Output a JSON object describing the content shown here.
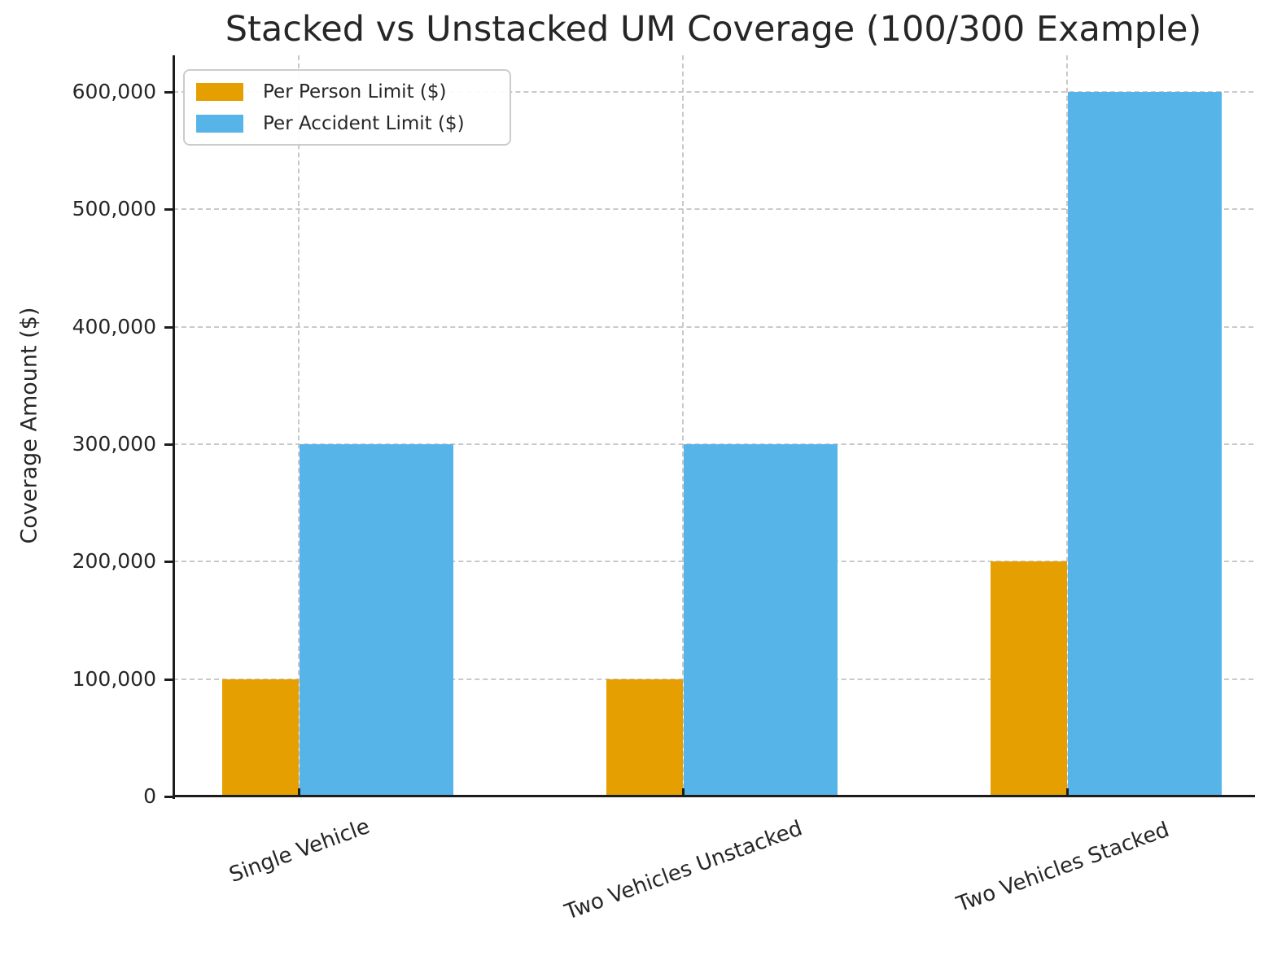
{
  "chart_data": {
    "type": "bar",
    "title": "Stacked vs Unstacked UM Coverage (100/300 Example)",
    "xlabel": "",
    "ylabel": "Coverage Amount ($)",
    "categories": [
      "Single Vehicle",
      "Two Vehicles Unstacked",
      "Two Vehicles Stacked"
    ],
    "series": [
      {
        "name": "Per Person Limit ($)",
        "color": "#E69F00",
        "values": [
          100000,
          100000,
          200000
        ]
      },
      {
        "name": "Per Accident Limit ($)",
        "color": "#56B4E9",
        "values": [
          300000,
          300000,
          600000
        ]
      }
    ],
    "ylim": [
      0,
      631000
    ],
    "yticks": [
      {
        "value": 0,
        "label": "0"
      },
      {
        "value": 100000,
        "label": "100,000"
      },
      {
        "value": 200000,
        "label": "200,000"
      },
      {
        "value": 300000,
        "label": "300,000"
      },
      {
        "value": 400000,
        "label": "400,000"
      },
      {
        "value": 500000,
        "label": "500,000"
      },
      {
        "value": 600000,
        "label": "600,000"
      }
    ],
    "grid": "dashed, both axes",
    "legend_position": "upper left",
    "colors": {
      "per_person": "#E69F00",
      "per_accident": "#56B4E9",
      "grid": "#c9c9c9",
      "text": "#262626",
      "spine": "#1c1c1c",
      "background": "#ffffff"
    }
  }
}
